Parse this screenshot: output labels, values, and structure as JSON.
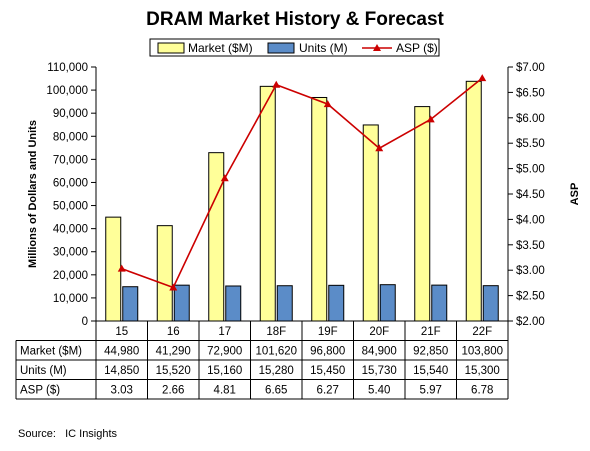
{
  "chart_data": {
    "type": "bar",
    "title": "DRAM Market History & Forecast",
    "categories": [
      "15",
      "16",
      "17",
      "18F",
      "19F",
      "20F",
      "21F",
      "22F"
    ],
    "series": [
      {
        "name": "Market ($M)",
        "type": "bar",
        "axis": "left",
        "color": "#ffff99",
        "values": [
          44980,
          41290,
          72900,
          101620,
          96800,
          84900,
          92850,
          103800
        ]
      },
      {
        "name": "Units (M)",
        "type": "bar",
        "axis": "left",
        "color": "#5b8cc8",
        "values": [
          14850,
          15520,
          15160,
          15280,
          15450,
          15730,
          15540,
          15300
        ]
      },
      {
        "name": "ASP ($)",
        "type": "line",
        "axis": "right",
        "color": "#cc0000",
        "values": [
          3.03,
          2.66,
          4.81,
          6.65,
          6.27,
          5.4,
          5.97,
          6.78
        ]
      }
    ],
    "ylabel": "Millions of Dollars and Units",
    "y2label": "ASP",
    "ylim": [
      0,
      110000
    ],
    "y2lim": [
      2.0,
      7.0
    ],
    "yticks": [
      "0",
      "10,000",
      "20,000",
      "30,000",
      "40,000",
      "50,000",
      "60,000",
      "70,000",
      "80,000",
      "90,000",
      "100,000",
      "110,000"
    ],
    "y2ticks": [
      "$2.00",
      "$2.50",
      "$3.00",
      "$3.50",
      "$4.00",
      "$4.50",
      "$5.00",
      "$5.50",
      "$6.00",
      "$6.50",
      "$7.00"
    ],
    "legend": "top",
    "grid": false,
    "data_table": {
      "rows": [
        {
          "label": "Market ($M)",
          "cells": [
            "44,980",
            "41,290",
            "72,900",
            "101,620",
            "96,800",
            "84,900",
            "92,850",
            "103,800"
          ]
        },
        {
          "label": "Units (M)",
          "cells": [
            "14,850",
            "15,520",
            "15,160",
            "15,280",
            "15,450",
            "15,730",
            "15,540",
            "15,300"
          ]
        },
        {
          "label": "ASP ($)",
          "cells": [
            "3.03",
            "2.66",
            "4.81",
            "6.65",
            "6.27",
            "5.40",
            "5.97",
            "6.78"
          ]
        }
      ]
    }
  },
  "source": "Source:   IC Insights"
}
